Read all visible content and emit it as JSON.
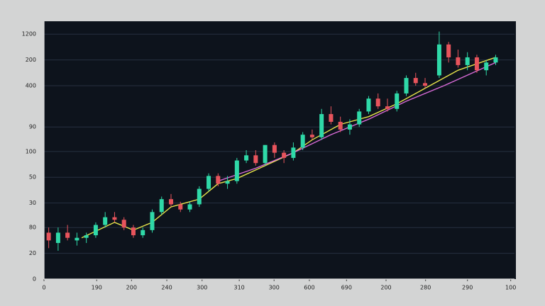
{
  "chart_data": {
    "type": "candlestick",
    "xlim": [
      0,
      100
    ],
    "ylim": [
      0,
      100
    ],
    "xticks": [
      {
        "value": 0,
        "label": "0"
      },
      {
        "value": 11.2,
        "label": "190"
      },
      {
        "value": 18.6,
        "label": "200"
      },
      {
        "value": 26.1,
        "label": "240"
      },
      {
        "value": 33.6,
        "label": "300"
      },
      {
        "value": 41.5,
        "label": "310"
      },
      {
        "value": 48.9,
        "label": "300"
      },
      {
        "value": 56.4,
        "label": "600"
      },
      {
        "value": 64.3,
        "label": "690"
      },
      {
        "value": 72.7,
        "label": "200"
      },
      {
        "value": 81.1,
        "label": "280"
      },
      {
        "value": 90,
        "label": "290"
      },
      {
        "value": 99.2,
        "label": "100"
      }
    ],
    "yticks": [
      0,
      {
        "value": 10,
        "label": "20"
      },
      {
        "value": 20,
        "label": "80"
      },
      {
        "value": 29.5,
        "label": "30"
      },
      {
        "value": 39.5,
        "label": "50"
      },
      {
        "value": 49.5,
        "label": "100"
      },
      {
        "value": 59,
        "label": "90"
      },
      {
        "value": 75,
        "label": "400"
      },
      {
        "value": 85,
        "label": "200"
      },
      {
        "value": 95,
        "label": "1200"
      }
    ],
    "grid": true,
    "up_color": "#2fd9a8",
    "down_color": "#e8545c",
    "x": [
      1,
      3,
      5,
      7,
      9,
      11,
      13,
      15,
      17,
      19,
      21,
      23,
      25,
      27,
      29,
      31,
      33,
      35,
      37,
      39,
      41,
      43,
      45,
      47,
      49,
      51,
      53,
      55,
      57,
      59,
      61,
      63,
      65,
      67,
      69,
      71,
      73,
      75,
      77,
      79,
      81,
      84,
      86,
      88,
      90,
      92,
      94,
      96
    ],
    "open": [
      18,
      14,
      18,
      15,
      16,
      17,
      21,
      24,
      23,
      20,
      17,
      19,
      26,
      31,
      29,
      27,
      29,
      35,
      40,
      37,
      38,
      46,
      48,
      45,
      52,
      49,
      47,
      51,
      56,
      55,
      64,
      61,
      58,
      60,
      65,
      70,
      67,
      66,
      72,
      78,
      76,
      79,
      91,
      86,
      83,
      86,
      81,
      84
    ],
    "high": [
      20,
      20,
      21,
      18,
      18,
      22,
      26,
      26,
      24,
      21,
      20,
      27,
      32,
      33,
      30,
      30,
      36,
      41,
      41,
      40,
      47,
      50,
      50,
      52,
      53,
      50,
      53,
      57,
      58,
      66,
      67,
      63,
      62,
      66,
      71,
      72,
      70,
      73,
      79,
      80,
      78,
      96,
      92,
      89,
      88,
      87,
      85,
      87
    ],
    "low": [
      12,
      11,
      15,
      13,
      14,
      16,
      20,
      22,
      19,
      16,
      16,
      18,
      25,
      28,
      26,
      26,
      28,
      34,
      36,
      35,
      37,
      45,
      44,
      44,
      47,
      45,
      46,
      50,
      54,
      54,
      60,
      57,
      56,
      59,
      64,
      66,
      65,
      65,
      71,
      75,
      74,
      78,
      84,
      82,
      81,
      80,
      79,
      83
    ],
    "close": [
      15,
      18,
      16,
      16,
      17,
      21,
      24,
      23,
      20,
      17,
      19,
      26,
      31,
      29,
      27,
      29,
      35,
      40,
      37,
      38,
      46,
      48,
      45,
      52,
      49,
      47,
      51,
      56,
      55,
      64,
      61,
      58,
      60,
      65,
      70,
      67,
      66,
      72,
      78,
      76,
      75,
      91,
      86,
      83,
      86,
      81,
      84,
      86
    ],
    "lines": [
      {
        "color": "#e6e34a",
        "x": [
          8,
          15,
          19,
          23,
          27,
          33,
          37,
          41,
          47,
          53,
          57,
          63,
          69,
          75,
          81,
          88,
          96
        ],
        "values": [
          16,
          22,
          19,
          22,
          28,
          31,
          37,
          39,
          44,
          49,
          54,
          60,
          63,
          68,
          74,
          81,
          86
        ]
      },
      {
        "color": "#d76ad6",
        "x": [
          37,
          45,
          53,
          61,
          69,
          77,
          85,
          96
        ],
        "values": [
          38,
          43,
          49,
          56,
          62,
          69,
          75,
          84
        ]
      }
    ]
  }
}
